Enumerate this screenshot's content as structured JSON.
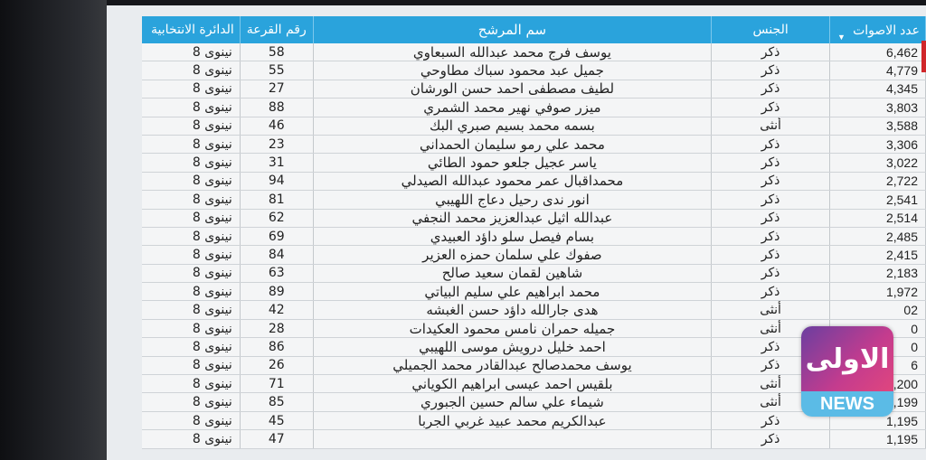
{
  "table": {
    "headers": {
      "district": "الدائرة الانتخابية",
      "number": "رقم القرعة",
      "name": "سم المرشح",
      "gender": "الجنس",
      "votes": "عدد الاصوات"
    },
    "sort_indicator": "▼",
    "rows": [
      {
        "district": "نينوى 8",
        "number": "58",
        "name": "يوسف فرج محمد عبدالله السبعاوي",
        "gender": "ذكر",
        "votes": "6,462"
      },
      {
        "district": "نينوى 8",
        "number": "55",
        "name": "جميل عبد محمود سباك مطاوحي",
        "gender": "ذكر",
        "votes": "4,779"
      },
      {
        "district": "نينوى 8",
        "number": "27",
        "name": "لطيف مصطفى احمد حسن الورشان",
        "gender": "ذكر",
        "votes": "4,345"
      },
      {
        "district": "نينوى 8",
        "number": "88",
        "name": "ميزر صوفي نهير محمد الشمري",
        "gender": "ذكر",
        "votes": "3,803"
      },
      {
        "district": "نينوى 8",
        "number": "46",
        "name": "بسمه محمد بسيم صبري البك",
        "gender": "أنثى",
        "votes": "3,588"
      },
      {
        "district": "نينوى 8",
        "number": "23",
        "name": "محمد علي رمو سليمان الحمداني",
        "gender": "ذكر",
        "votes": "3,306"
      },
      {
        "district": "نينوى 8",
        "number": "31",
        "name": "ياسر عجيل جلعو حمود الطائي",
        "gender": "ذكر",
        "votes": "3,022"
      },
      {
        "district": "نينوى 8",
        "number": "94",
        "name": "محمداقبال عمر محمود عبدالله الصيدلي",
        "gender": "ذكر",
        "votes": "2,722"
      },
      {
        "district": "نينوى 8",
        "number": "81",
        "name": "انور ندى رحيل دعاج اللهيبي",
        "gender": "ذكر",
        "votes": "2,541"
      },
      {
        "district": "نينوى 8",
        "number": "62",
        "name": "عبدالله اثيل عبدالعزيز محمد النجفي",
        "gender": "ذكر",
        "votes": "2,514"
      },
      {
        "district": "نينوى 8",
        "number": "69",
        "name": "بسام فيصل سلو داؤد العبيدي",
        "gender": "ذكر",
        "votes": "2,485"
      },
      {
        "district": "نينوى 8",
        "number": "84",
        "name": "صفوك علي سلمان حمزه العزير",
        "gender": "ذكر",
        "votes": "2,415"
      },
      {
        "district": "نينوى 8",
        "number": "63",
        "name": "شاهين لقمان سعيد صالح",
        "gender": "ذكر",
        "votes": "2,183"
      },
      {
        "district": "نينوى 8",
        "number": "89",
        "name": "محمد ابراهيم علي سليم البياتي",
        "gender": "ذكر",
        "votes": "1,972"
      },
      {
        "district": "نينوى 8",
        "number": "42",
        "name": "هدى جارالله داؤد حسن الغبشه",
        "gender": "أنثى",
        "votes": "02"
      },
      {
        "district": "نينوى 8",
        "number": "28",
        "name": "جميله حمران نامس محمود العكيدات",
        "gender": "أنثى",
        "votes": "0"
      },
      {
        "district": "نينوى 8",
        "number": "86",
        "name": "احمد خليل درويش موسى اللهيبي",
        "gender": "ذكر",
        "votes": "0"
      },
      {
        "district": "نينوى 8",
        "number": "26",
        "name": "يوسف محمدصالح عبدالقادر محمد الجميلي",
        "gender": "ذكر",
        "votes": "6"
      },
      {
        "district": "نينوى 8",
        "number": "71",
        "name": "بلقيس احمد عيسى ابراهيم الكوياني",
        "gender": "أنثى",
        "votes": "1,200"
      },
      {
        "district": "نينوى 8",
        "number": "85",
        "name": "شيماء علي سالم حسين الجبوري",
        "gender": "أنثى",
        "votes": "1,199"
      },
      {
        "district": "نينوى 8",
        "number": "45",
        "name": "عبدالكريم محمد عبيد غربي الجربا",
        "gender": "ذكر",
        "votes": "1,195"
      },
      {
        "district": "نينوى 8",
        "number": "47",
        "name": "",
        "gender": "ذكر",
        "votes": "1,195"
      }
    ]
  },
  "logo": {
    "arabic": "الاولى نيوز",
    "latin": "NEWS"
  },
  "colors": {
    "header": "#2aa3dc",
    "logo_gradient_start": "#6b3fa0",
    "logo_gradient_end": "#e0467e",
    "logo_band": "#5bbbe6"
  }
}
